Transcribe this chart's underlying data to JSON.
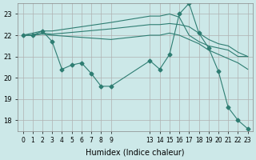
{
  "bg_color": "#cce8e8",
  "grid_color": "#b0b0b0",
  "line_color": "#2e7d72",
  "xlabel": "Humidex (Indice chaleur)",
  "xlim": [
    -0.5,
    23.5
  ],
  "ylim": [
    17.5,
    23.5
  ],
  "yticks": [
    18,
    19,
    20,
    21,
    22,
    23
  ],
  "xtick_positions": [
    0,
    1,
    2,
    3,
    4,
    5,
    6,
    7,
    8,
    9,
    13,
    14,
    15,
    16,
    17,
    18,
    19,
    20,
    21,
    22,
    23
  ],
  "xtick_labels": [
    "0",
    "1",
    "2",
    "3",
    "4",
    "5",
    "6",
    "7",
    "8",
    "9",
    "13",
    "14",
    "15",
    "16",
    "17",
    "18",
    "19",
    "20",
    "21",
    "22",
    "23"
  ],
  "lines": [
    {
      "x": [
        0,
        1,
        2,
        3,
        4,
        5,
        6,
        7,
        8,
        9,
        13,
        14,
        15,
        16,
        17,
        18,
        19,
        20,
        21,
        22,
        23
      ],
      "y": [
        22,
        22,
        22.2,
        21.7,
        20.4,
        20.6,
        20.7,
        20.2,
        19.6,
        19.6,
        20.8,
        20.4,
        21.1,
        23.0,
        23.5,
        22.1,
        21.4,
        20.3,
        18.6,
        18.0,
        17.6
      ],
      "marker": true
    },
    {
      "x": [
        0,
        2,
        3,
        9,
        13,
        14,
        15,
        16,
        17,
        18,
        19,
        20,
        21,
        22,
        23
      ],
      "y": [
        22,
        22.2,
        22.2,
        22.6,
        22.9,
        22.9,
        23.0,
        22.85,
        22.0,
        21.7,
        21.5,
        21.4,
        21.3,
        21.0,
        21.0
      ],
      "marker": false
    },
    {
      "x": [
        0,
        1,
        2,
        3,
        9,
        13,
        14,
        15,
        16,
        17,
        18,
        19,
        20,
        21,
        22,
        23
      ],
      "y": [
        22,
        22,
        22.1,
        22.05,
        22.3,
        22.5,
        22.5,
        22.55,
        22.5,
        22.4,
        22.1,
        21.8,
        21.6,
        21.5,
        21.2,
        21.0
      ],
      "marker": false
    },
    {
      "x": [
        0,
        1,
        2,
        3,
        9,
        13,
        14,
        15,
        16,
        18,
        19,
        20,
        21,
        22,
        23
      ],
      "y": [
        22,
        22,
        22.05,
        22.0,
        21.8,
        22.0,
        22.0,
        22.1,
        22.0,
        21.6,
        21.3,
        21.1,
        20.9,
        20.7,
        20.4
      ],
      "marker": false
    }
  ]
}
